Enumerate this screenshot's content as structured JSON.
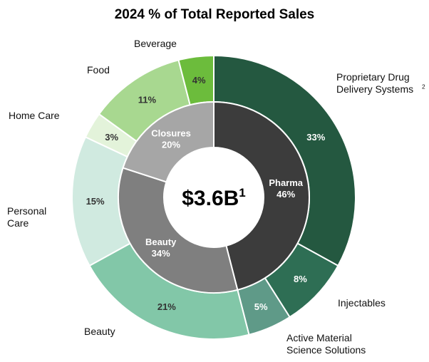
{
  "chart_data": {
    "type": "pie",
    "title": "2024 % of Total Reported Sales",
    "center_label": "$3.6B",
    "center_footnote": "1",
    "inner_ring": [
      {
        "name": "Pharma",
        "value": 46,
        "label": "46%",
        "color": "#3c3c3c"
      },
      {
        "name": "Beauty",
        "value": 34,
        "label": "34%",
        "color": "#7f7f7f"
      },
      {
        "name": "Closures",
        "value": 20,
        "label": "20%",
        "color": "#a6a6a6"
      }
    ],
    "outer_ring": [
      {
        "name": "Proprietary Drug Delivery Systems",
        "footnote": "2",
        "value": 33,
        "label": "33%",
        "color": "#245840",
        "text_color": "#ffffff"
      },
      {
        "name": "Injectables",
        "value": 8,
        "label": "8%",
        "color": "#2e6e54",
        "text_color": "#ffffff"
      },
      {
        "name": "Active Material Science Solutions",
        "value": 5,
        "label": "5%",
        "color": "#5f9a88",
        "text_color": "#ffffff"
      },
      {
        "name": "Beauty",
        "value": 21,
        "label": "21%",
        "color": "#82c7a8",
        "text_color": "#333333"
      },
      {
        "name": "Personal Care",
        "value": 15,
        "label": "15%",
        "color": "#d0eae0",
        "text_color": "#333333"
      },
      {
        "name": "Home Care",
        "value": 3,
        "label": "3%",
        "color": "#e3f3da",
        "text_color": "#333333"
      },
      {
        "name": "Food",
        "value": 11,
        "label": "11%",
        "color": "#a8d890",
        "text_color": "#333333"
      },
      {
        "name": "Beverage",
        "value": 4,
        "label": "4%",
        "color": "#6cbc3c",
        "text_color": "#333333"
      }
    ]
  }
}
